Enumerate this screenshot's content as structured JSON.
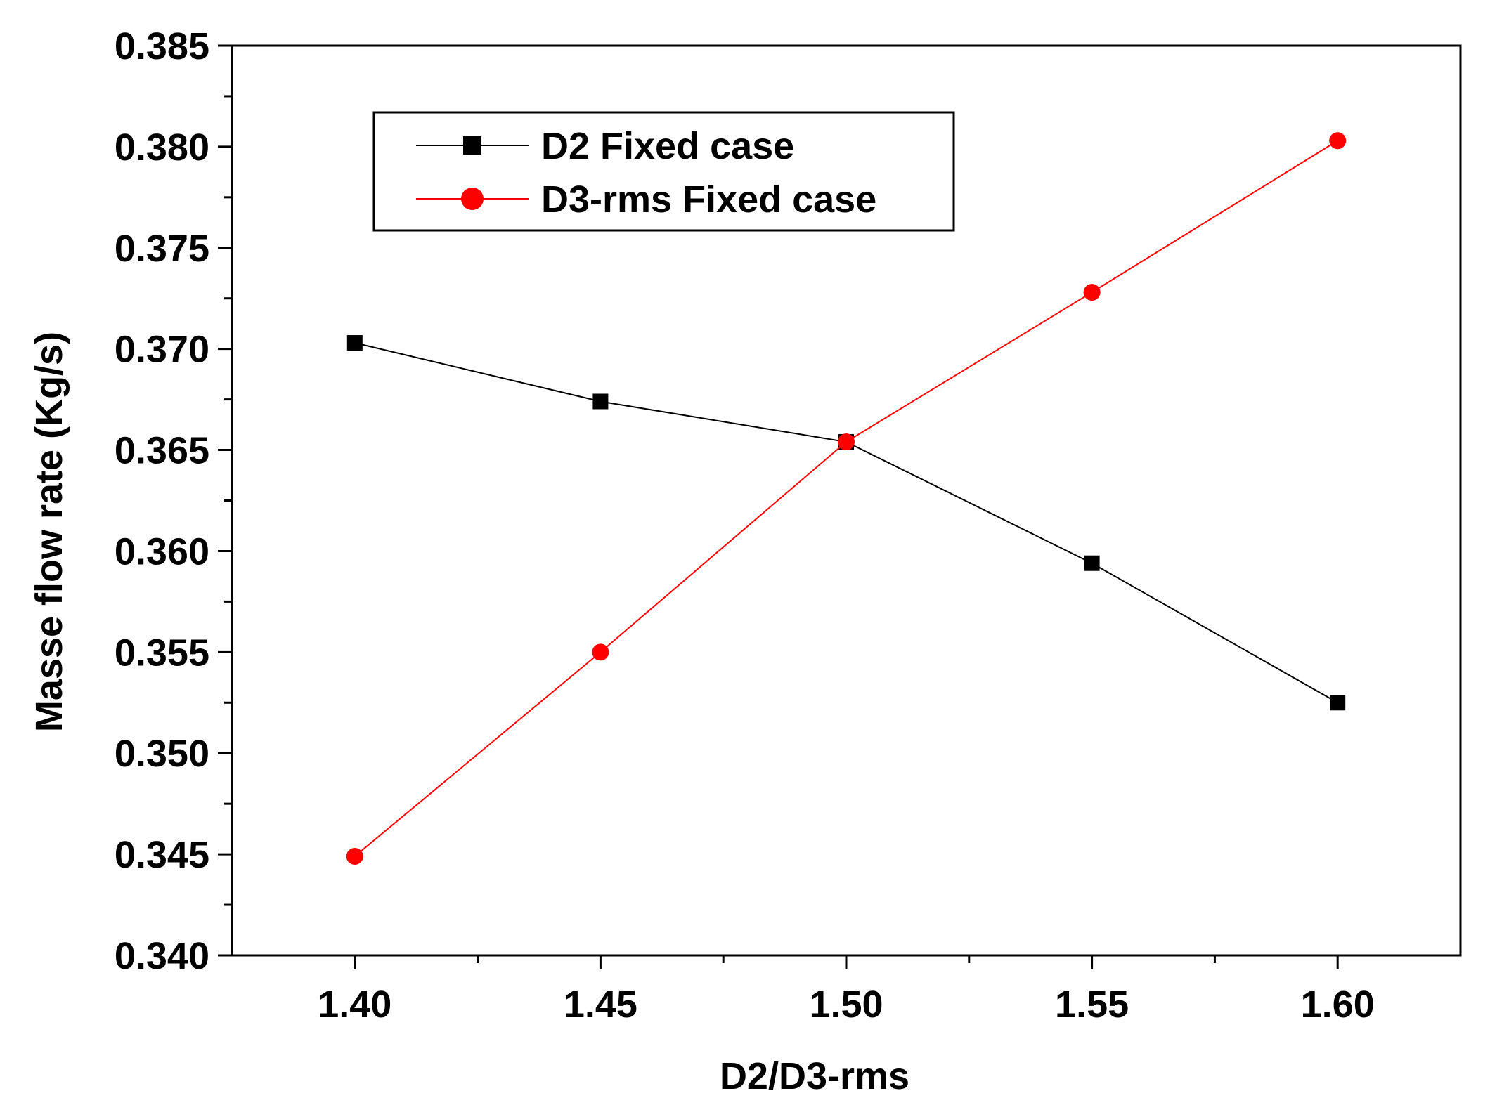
{
  "chart_data": {
    "type": "line",
    "title": "",
    "xlabel": "D2/D3-rms",
    "ylabel": "Masse flow rate (Kg/s)",
    "xlim": [
      1.375,
      1.625
    ],
    "ylim": [
      0.34,
      0.385
    ],
    "x_ticks": [
      1.4,
      1.45,
      1.5,
      1.55,
      1.6
    ],
    "x_tick_labels": [
      "1.40",
      "1.45",
      "1.50",
      "1.55",
      "1.60"
    ],
    "y_ticks": [
      0.34,
      0.345,
      0.35,
      0.355,
      0.36,
      0.365,
      0.37,
      0.375,
      0.38,
      0.385
    ],
    "y_tick_labels": [
      "0.340",
      "0.345",
      "0.350",
      "0.355",
      "0.360",
      "0.365",
      "0.370",
      "0.375",
      "0.380",
      "0.385"
    ],
    "grid": false,
    "legend_position": "top-left",
    "series": [
      {
        "name": "D2 Fixed case",
        "marker": "square",
        "color": "#000000",
        "x": [
          1.4,
          1.45,
          1.5,
          1.55,
          1.6
        ],
        "y": [
          0.3703,
          0.3674,
          0.3654,
          0.3594,
          0.3525
        ]
      },
      {
        "name": "D3-rms Fixed case",
        "marker": "circle",
        "color": "#ff0000",
        "x": [
          1.4,
          1.45,
          1.5,
          1.55,
          1.6
        ],
        "y": [
          0.3449,
          0.355,
          0.3654,
          0.3728,
          0.3803
        ]
      }
    ]
  }
}
